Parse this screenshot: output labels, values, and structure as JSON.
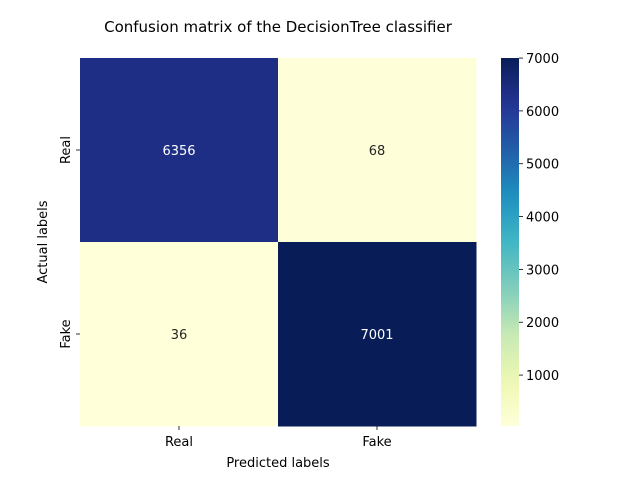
{
  "chart_data": {
    "type": "heatmap",
    "title": "Confusion matrix of the DecisionTree classifier",
    "xlabel": "Predicted labels",
    "ylabel": "Actual labels",
    "x_categories": [
      "Real",
      "Fake"
    ],
    "y_categories": [
      "Real",
      "Fake"
    ],
    "values": [
      [
        6356,
        68
      ],
      [
        36,
        7001
      ]
    ],
    "colormap": "YlGnBu",
    "colorbar": {
      "range": [
        36,
        7001
      ],
      "ticks": [
        1000,
        2000,
        3000,
        4000,
        5000,
        6000,
        7000
      ]
    }
  },
  "colors": {
    "colormap_stops": [
      "#ffffd9",
      "#edf8b1",
      "#c7e9b4",
      "#7fcdbb",
      "#41b6c4",
      "#1d91c0",
      "#225ea8",
      "#253494",
      "#081d58"
    ],
    "text_light": "#ffffff",
    "text_dark": "#262626"
  }
}
